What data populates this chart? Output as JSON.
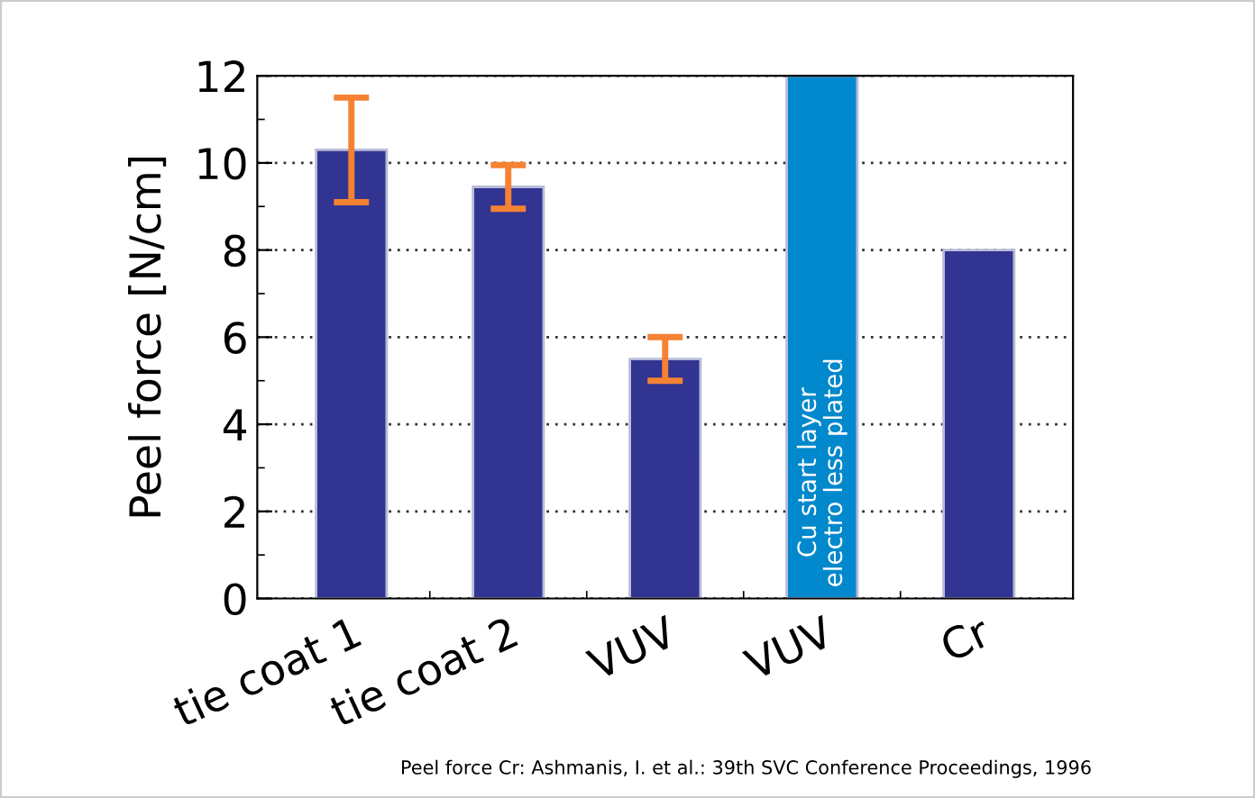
{
  "chart_data": {
    "type": "bar",
    "ylabel": "Peel force [N/cm]",
    "categories": [
      "tie coat 1",
      "tie coat 2",
      "VUV",
      "VUV",
      "Cr"
    ],
    "values": [
      10.3,
      9.45,
      5.5,
      12,
      8.0
    ],
    "colors": [
      "#323492",
      "#323492",
      "#323492",
      "#0288cc",
      "#323492"
    ],
    "errors": [
      [
        9.1,
        11.5
      ],
      [
        8.95,
        9.95
      ],
      [
        5.0,
        6.0
      ],
      null,
      null
    ],
    "ylim": [
      0,
      12
    ],
    "yticks": [
      0,
      2,
      4,
      6,
      8,
      10,
      12
    ],
    "grid": "y",
    "annotations": [
      "Cu start layer\nelectro less plated",
      "Peel force Cr: Ashmanis, I. et al.: 39th SVC Conference Proceedings, 1996"
    ]
  }
}
